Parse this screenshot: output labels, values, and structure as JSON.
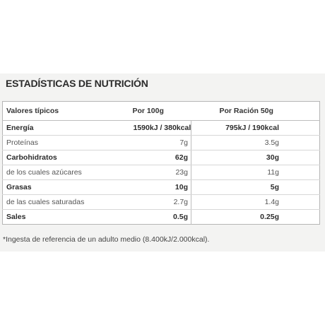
{
  "title": "ESTADÍSTICAS DE NUTRICIÓN",
  "table": {
    "headers": [
      "Valores típicos",
      "Por 100g",
      "Por Ración 50g"
    ],
    "rows": [
      {
        "label": "Energía",
        "per100": "1590kJ / 380kcal",
        "perServing": "795kJ / 190kcal",
        "bold": true
      },
      {
        "label": "Proteínas",
        "per100": "7g",
        "perServing": "3.5g",
        "bold": false
      },
      {
        "label": "Carbohidratos",
        "per100": "62g",
        "perServing": "30g",
        "bold": true
      },
      {
        "label": "de los cuales azúcares",
        "per100": "23g",
        "perServing": "11g",
        "bold": false
      },
      {
        "label": "Grasas",
        "per100": "10g",
        "perServing": "5g",
        "bold": true
      },
      {
        "label": "de las cuales saturadas",
        "per100": "2.7g",
        "perServing": "1.4g",
        "bold": false
      },
      {
        "label": "Sales",
        "per100": "0.5g",
        "perServing": "0.25g",
        "bold": true
      }
    ]
  },
  "footnote": "*Ingesta de referencia de un adulto medio (8.400kJ/2.000kcal)."
}
